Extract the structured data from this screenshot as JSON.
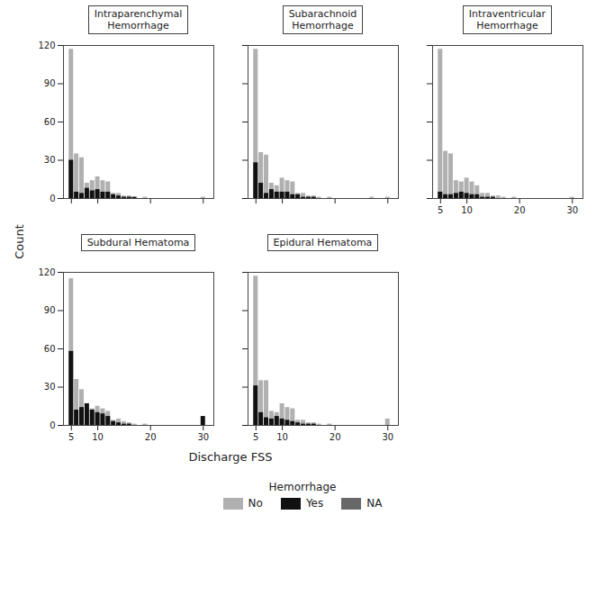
{
  "chart_data": [
    {
      "type": "bar",
      "title": "Intraparenchymal\nHemorrhage",
      "x": [
        5,
        6,
        7,
        8,
        9,
        10,
        11,
        12,
        13,
        14,
        15,
        16,
        17,
        18,
        19,
        20,
        21,
        22,
        23,
        24,
        25,
        26,
        27,
        28,
        29,
        30
      ],
      "series": [
        {
          "name": "No",
          "color": "#b0b0b0",
          "values": [
            117,
            35,
            32,
            12,
            14,
            17,
            14,
            13,
            4,
            4,
            2,
            2,
            1,
            0,
            1,
            0,
            0,
            0,
            0,
            0,
            0,
            0,
            0,
            0,
            0,
            1
          ]
        },
        {
          "name": "Yes",
          "color": "#111111",
          "values": [
            30,
            5,
            4,
            8,
            6,
            7,
            5,
            5,
            3,
            2,
            1,
            1,
            1,
            0,
            0,
            0,
            0,
            0,
            0,
            0,
            0,
            0,
            0,
            0,
            0,
            0
          ]
        },
        {
          "name": "NA",
          "color": "#686868",
          "values": [
            0,
            0,
            0,
            0,
            0,
            0,
            0,
            0,
            0,
            0,
            0,
            0,
            0,
            0,
            0,
            0,
            0,
            0,
            0,
            0,
            0,
            0,
            0,
            0,
            0,
            0
          ]
        }
      ],
      "xlim": [
        3.5,
        32
      ],
      "xticks": [
        5,
        10,
        20,
        30
      ],
      "ylim": [
        0,
        120
      ],
      "yticks": [
        0,
        30,
        60,
        90,
        120
      ],
      "stacked": false,
      "tick_labels": "y",
      "ylabel": "Count",
      "legend": "bottom",
      "legend_title": "Hemorrhage"
    },
    {
      "type": "bar",
      "title": "Subarachnoid\nHemorrhage",
      "x": [
        5,
        6,
        7,
        8,
        9,
        10,
        11,
        12,
        13,
        14,
        15,
        16,
        17,
        18,
        19,
        20,
        21,
        22,
        23,
        24,
        25,
        26,
        27,
        28,
        29,
        30
      ],
      "series": [
        {
          "name": "No",
          "color": "#b0b0b0",
          "values": [
            117,
            36,
            34,
            12,
            10,
            16,
            14,
            13,
            4,
            4,
            2,
            2,
            1,
            0,
            1,
            0,
            0,
            0,
            0,
            0,
            0,
            0,
            1,
            0,
            0,
            1
          ]
        },
        {
          "name": "Yes",
          "color": "#111111",
          "values": [
            28,
            12,
            4,
            7,
            5,
            5,
            5,
            3,
            3,
            1,
            1,
            1,
            0,
            0,
            0,
            0,
            0,
            0,
            0,
            0,
            0,
            0,
            0,
            0,
            0,
            0
          ]
        },
        {
          "name": "NA",
          "color": "#686868",
          "values": [
            0,
            0,
            0,
            0,
            0,
            0,
            0,
            0,
            0,
            0,
            0,
            0,
            0,
            0,
            0,
            0,
            0,
            0,
            0,
            0,
            0,
            0,
            0,
            0,
            0,
            0
          ]
        }
      ],
      "xlim": [
        3.5,
        32
      ],
      "xticks": [
        5,
        10,
        20,
        30
      ],
      "ylim": [
        0,
        120
      ],
      "yticks": [
        0,
        30,
        60,
        90,
        120
      ],
      "stacked": false,
      "tick_labels": false
    },
    {
      "type": "bar",
      "title": "Intraventricular\nHemorrhage",
      "x": [
        5,
        6,
        7,
        8,
        9,
        10,
        11,
        12,
        13,
        14,
        15,
        16,
        17,
        18,
        19,
        20,
        21,
        22,
        23,
        24,
        25,
        26,
        27,
        28,
        29,
        30
      ],
      "series": [
        {
          "name": "No",
          "color": "#b0b0b0",
          "values": [
            117,
            37,
            35,
            14,
            13,
            16,
            13,
            10,
            4,
            4,
            2,
            2,
            1,
            0,
            1,
            0,
            0,
            0,
            0,
            0,
            0,
            0,
            0,
            0,
            0,
            1
          ]
        },
        {
          "name": "Yes",
          "color": "#111111",
          "values": [
            5,
            3,
            3,
            4,
            5,
            4,
            3,
            3,
            1,
            1,
            1,
            0,
            0,
            0,
            0,
            0,
            0,
            0,
            0,
            0,
            0,
            0,
            0,
            0,
            0,
            0
          ]
        },
        {
          "name": "NA",
          "color": "#686868",
          "values": [
            0,
            0,
            0,
            0,
            0,
            0,
            0,
            0,
            0,
            0,
            0,
            0,
            0,
            0,
            0,
            0,
            0,
            0,
            0,
            0,
            0,
            0,
            0,
            0,
            0,
            0
          ]
        }
      ],
      "xlim": [
        3.5,
        32
      ],
      "xticks": [
        5,
        10,
        20,
        30
      ],
      "ylim": [
        0,
        120
      ],
      "yticks": [
        0,
        30,
        60,
        90,
        120
      ],
      "stacked": false,
      "tick_labels": "x"
    },
    {
      "type": "bar",
      "title": "Subdural Hematoma",
      "x": [
        5,
        6,
        7,
        8,
        9,
        10,
        11,
        12,
        13,
        14,
        15,
        16,
        17,
        18,
        19,
        20,
        21,
        22,
        23,
        24,
        25,
        26,
        27,
        28,
        29,
        30
      ],
      "series": [
        {
          "name": "No",
          "color": "#b0b0b0",
          "values": [
            115,
            36,
            28,
            13,
            13,
            15,
            13,
            11,
            4,
            5,
            3,
            2,
            1,
            0,
            1,
            0,
            0,
            0,
            0,
            0,
            0,
            0,
            0,
            0,
            0,
            0
          ]
        },
        {
          "name": "Yes",
          "color": "#111111",
          "values": [
            58,
            12,
            14,
            17,
            12,
            10,
            9,
            7,
            3,
            2,
            1,
            1,
            0,
            0,
            0,
            0,
            0,
            0,
            0,
            0,
            0,
            0,
            0,
            0,
            0,
            7
          ]
        },
        {
          "name": "NA",
          "color": "#686868",
          "values": [
            0,
            0,
            0,
            0,
            0,
            0,
            0,
            0,
            0,
            0,
            0,
            0,
            0,
            0,
            0,
            0,
            0,
            0,
            0,
            0,
            0,
            0,
            0,
            0,
            0,
            0
          ]
        }
      ],
      "xlim": [
        3.5,
        32
      ],
      "xticks": [
        5,
        10,
        20,
        30
      ],
      "ylim": [
        0,
        120
      ],
      "yticks": [
        0,
        30,
        60,
        90,
        120
      ],
      "stacked": false,
      "xlabel": "Discharge FSS"
    },
    {
      "type": "bar",
      "title": "Epidural Hematoma",
      "x": [
        5,
        6,
        7,
        8,
        9,
        10,
        11,
        12,
        13,
        14,
        15,
        16,
        17,
        18,
        19,
        20,
        21,
        22,
        23,
        24,
        25,
        26,
        27,
        28,
        29,
        30
      ],
      "series": [
        {
          "name": "No",
          "color": "#b0b0b0",
          "values": [
            117,
            35,
            35,
            11,
            10,
            17,
            14,
            13,
            4,
            4,
            2,
            2,
            1,
            0,
            1,
            0,
            0,
            0,
            0,
            0,
            0,
            0,
            0,
            0,
            0,
            5
          ]
        },
        {
          "name": "Yes",
          "color": "#111111",
          "values": [
            31,
            10,
            6,
            5,
            7,
            5,
            4,
            3,
            2,
            1,
            1,
            1,
            0,
            0,
            0,
            0,
            0,
            0,
            0,
            0,
            0,
            0,
            0,
            0,
            0,
            0
          ]
        },
        {
          "name": "NA",
          "color": "#686868",
          "values": [
            0,
            0,
            0,
            0,
            0,
            0,
            0,
            0,
            0,
            0,
            0,
            0,
            0,
            0,
            0,
            0,
            0,
            0,
            0,
            0,
            0,
            0,
            0,
            0,
            0,
            0
          ]
        }
      ],
      "xlim": [
        3.5,
        32
      ],
      "xticks": [
        5,
        10,
        20,
        30
      ],
      "ylim": [
        0,
        120
      ],
      "yticks": [
        0,
        30,
        60,
        90,
        120
      ],
      "stacked": false,
      "tick_labels": "x"
    }
  ]
}
